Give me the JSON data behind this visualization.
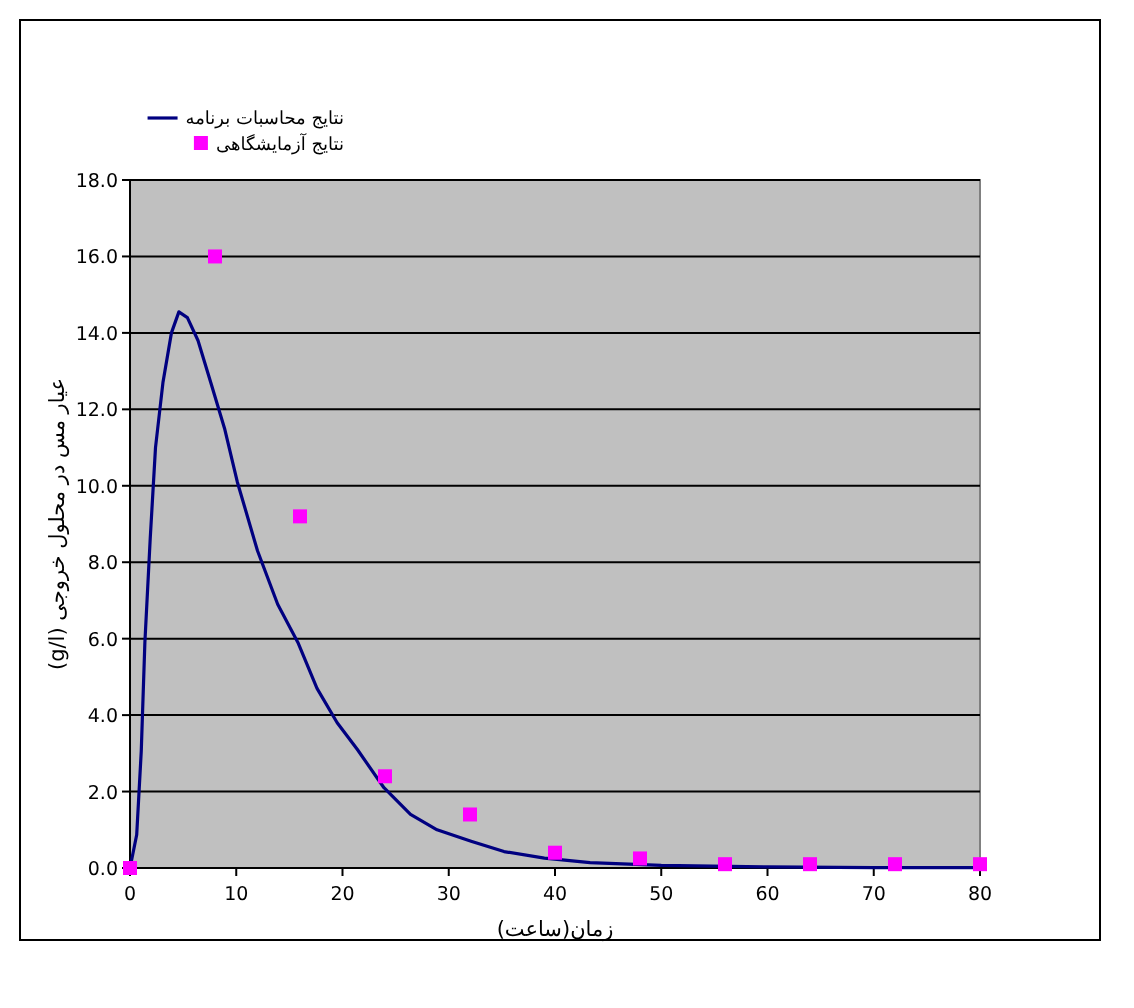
{
  "chart_data": {
    "type": "line",
    "xlabel": "زمان(ساعت)",
    "ylabel": "عیار مس در محلول خروجی (g/l)",
    "xlim": [
      0,
      80
    ],
    "xticks": [
      0,
      10,
      20,
      30,
      40,
      50,
      60,
      70,
      80
    ],
    "ylim": [
      0,
      18
    ],
    "yticks": [
      {
        "value": 0,
        "label": "0.0"
      },
      {
        "value": 2,
        "label": "2.0"
      },
      {
        "value": 4,
        "label": "4.0"
      },
      {
        "value": 6,
        "label": "6.0"
      },
      {
        "value": 8,
        "label": "8.0"
      },
      {
        "value": 10,
        "label": "10.0"
      },
      {
        "value": 12,
        "label": "12.0"
      },
      {
        "value": 14,
        "label": "14.0"
      },
      {
        "value": 16,
        "label": "16.0"
      },
      {
        "value": 18,
        "label": "18.0"
      }
    ],
    "grid": "y",
    "legend": "top left",
    "series": [
      {
        "name": "نتایج محاسبات برنامه",
        "type": "line",
        "color": "#000080",
        "marker": "none",
        "x": [
          0,
          0.63,
          1.06,
          1.4,
          1.9,
          2.4,
          3.1,
          3.9,
          4.6,
          5.4,
          6.4,
          7.6,
          8.9,
          10.1,
          12.0,
          13.9,
          15.8,
          17.6,
          19.5,
          21.4,
          23.9,
          26.4,
          28.9,
          32.1,
          35.2,
          39,
          43.3,
          50,
          60,
          70,
          80
        ],
        "values": [
          0,
          0.87,
          3.06,
          5.9,
          8.6,
          11.0,
          12.7,
          14.0,
          14.55,
          14.4,
          13.8,
          12.7,
          11.5,
          10.1,
          8.3,
          6.9,
          5.9,
          4.7,
          3.8,
          3.1,
          2.1,
          1.4,
          1.0,
          0.7,
          0.43,
          0.26,
          0.14,
          0.07,
          0.03,
          0.01,
          0.01
        ]
      },
      {
        "name": "نتایج آزمایشگاهی",
        "type": "scatter",
        "color": "#ff00ff",
        "marker": "square",
        "x": [
          0,
          8,
          16,
          24,
          32,
          40,
          48,
          56,
          64,
          72,
          80
        ],
        "values": [
          0,
          16,
          9.2,
          2.4,
          1.4,
          0.4,
          0.25,
          0.1,
          0.1,
          0.1,
          0.1
        ]
      }
    ]
  }
}
